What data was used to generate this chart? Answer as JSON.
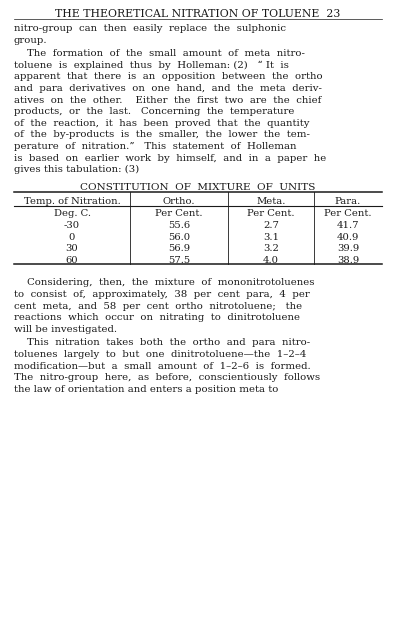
{
  "background_color": "#ffffff",
  "header": "THE THEORETICAL NITRATION OF TOLUENE  23",
  "para1_lines": [
    "nitro-group  can  then  easily  replace  the  sulphonic",
    "group."
  ],
  "para2_lines": [
    "    The  formation  of  the  small  amount  of  meta  nitro-",
    "toluene  is  explained  thus  by  Holleman: (2)   “ It  is",
    "apparent  that  there  is  an  opposition  between  the  ortho",
    "and  para  derivatives  on  one  hand,  and  the  meta  deriv-",
    "atives  on  the  other.    Either  the  first  two  are  the  chief",
    "products,  or  the  last.   Concerning  the  temperature",
    "of  the  reaction,  it  has  been  proved  that  the  quantity",
    "of  the  by-products  is  the  smaller,  the  lower  the  tem-",
    "perature  of  nitration.”   This  statement  of  Holleman",
    "is  based  on  earlier  work  by  himself,  and  in  a  paper  he",
    "gives this tabulation: (3)"
  ],
  "table_title": "CONSTITUTION  OF  MIXTURE  OF  UNITS",
  "table_col_headers": [
    "Temp. of Nitration.",
    "Ortho.",
    "Meta.",
    "Para."
  ],
  "table_sub_headers": [
    "Deg. C.",
    "Per Cent.",
    "Per Cent.",
    "Per Cent."
  ],
  "table_data": [
    [
      "-30",
      "55.6",
      "2.7",
      "41.7"
    ],
    [
      "0",
      "56.0",
      "3.1",
      "40.9"
    ],
    [
      "30",
      "56.9",
      "3.2",
      "39.9"
    ],
    [
      "60",
      "57.5",
      "4.0",
      "38.9"
    ]
  ],
  "para3_lines": [
    "    Considering,  then,  the  mixture  of  mononitrotoluenes",
    "to  consist  of,  approximately,  38  per  cent  para,  4  per",
    "cent  meta,  and  58  per  cent  ortho  nitrotoluene;   the",
    "reactions  which  occur  on  nitrating  to  dinitrotoluene",
    "will be investigated."
  ],
  "para4_lines": [
    "    This  nitration  takes  both  the  ortho  and  para  nitro-",
    "toluenes  largely  to  but  one  dinitrotoluene—the  1–2–4",
    "modification—but  a  small  amount  of  1–2–6  is  formed.",
    "The  nitro-group  here,  as  before,  conscientiously  follows",
    "the law of orientation and enters a position meta to"
  ],
  "text_color": "#1a1a1a",
  "line_color": "#1a1a1a"
}
